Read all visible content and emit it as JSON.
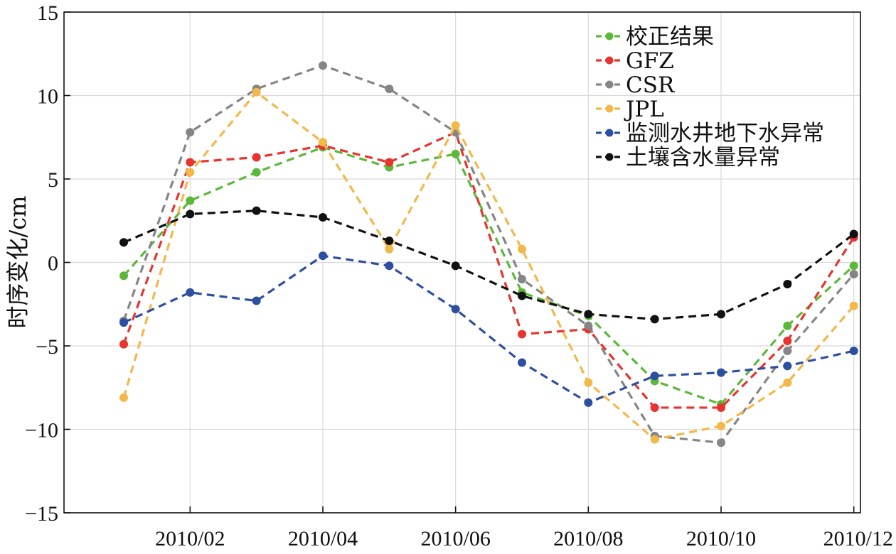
{
  "chart_data": {
    "type": "line",
    "ylabel": "时序变化/cm",
    "ylim": [
      -15,
      15
    ],
    "y_ticks": [
      15,
      10,
      5,
      0,
      -5,
      -10,
      -15
    ],
    "y_tick_labels": [
      "15",
      "10",
      "5",
      "0",
      "−5",
      "−10",
      "−15"
    ],
    "xlim": [
      0.1,
      12.1
    ],
    "x_ticks": [
      2,
      4,
      6,
      8,
      10,
      12
    ],
    "x_tick_labels": [
      "2010/02",
      "2010/04",
      "2010/06",
      "2010/08",
      "2010/10",
      "2010/12"
    ],
    "x": [
      1,
      2,
      3,
      4,
      5,
      6,
      7,
      8,
      9,
      10,
      11,
      12
    ],
    "grid": true,
    "legend_position": "top-right",
    "series": [
      {
        "name": "校正结果",
        "color": "#5cb83a",
        "values": [
          -0.8,
          3.7,
          5.4,
          6.9,
          5.7,
          6.5,
          -1.8,
          -3.2,
          -7.1,
          -8.5,
          -3.8,
          -0.2
        ]
      },
      {
        "name": "GFZ",
        "color": "#e8332e",
        "values": [
          -4.9,
          6.0,
          6.3,
          7.0,
          6.0,
          7.8,
          -4.3,
          -4.0,
          -8.7,
          -8.7,
          -4.7,
          1.5
        ]
      },
      {
        "name": "CSR",
        "color": "#858585",
        "values": [
          -3.5,
          7.8,
          10.4,
          11.8,
          10.4,
          7.8,
          -1.0,
          -3.8,
          -10.4,
          -10.8,
          -5.3,
          -0.7
        ]
      },
      {
        "name": "JPL",
        "color": "#f2b84a",
        "values": [
          -8.1,
          5.4,
          10.2,
          7.2,
          0.8,
          8.2,
          0.8,
          -7.2,
          -10.6,
          -9.8,
          -7.2,
          -2.6
        ]
      },
      {
        "name": "监测水井地下水异常",
        "color": "#2e4fa0",
        "values": [
          -3.6,
          -1.8,
          -2.3,
          0.4,
          -0.2,
          -2.8,
          -6.0,
          -8.4,
          -6.8,
          -6.6,
          -6.2,
          -5.3
        ]
      },
      {
        "name": "土壤含水量异常",
        "color": "#111111",
        "values": [
          1.2,
          2.9,
          3.1,
          2.7,
          1.3,
          -0.2,
          -2.0,
          -3.1,
          -3.4,
          -3.1,
          -1.3,
          1.7
        ]
      }
    ]
  }
}
